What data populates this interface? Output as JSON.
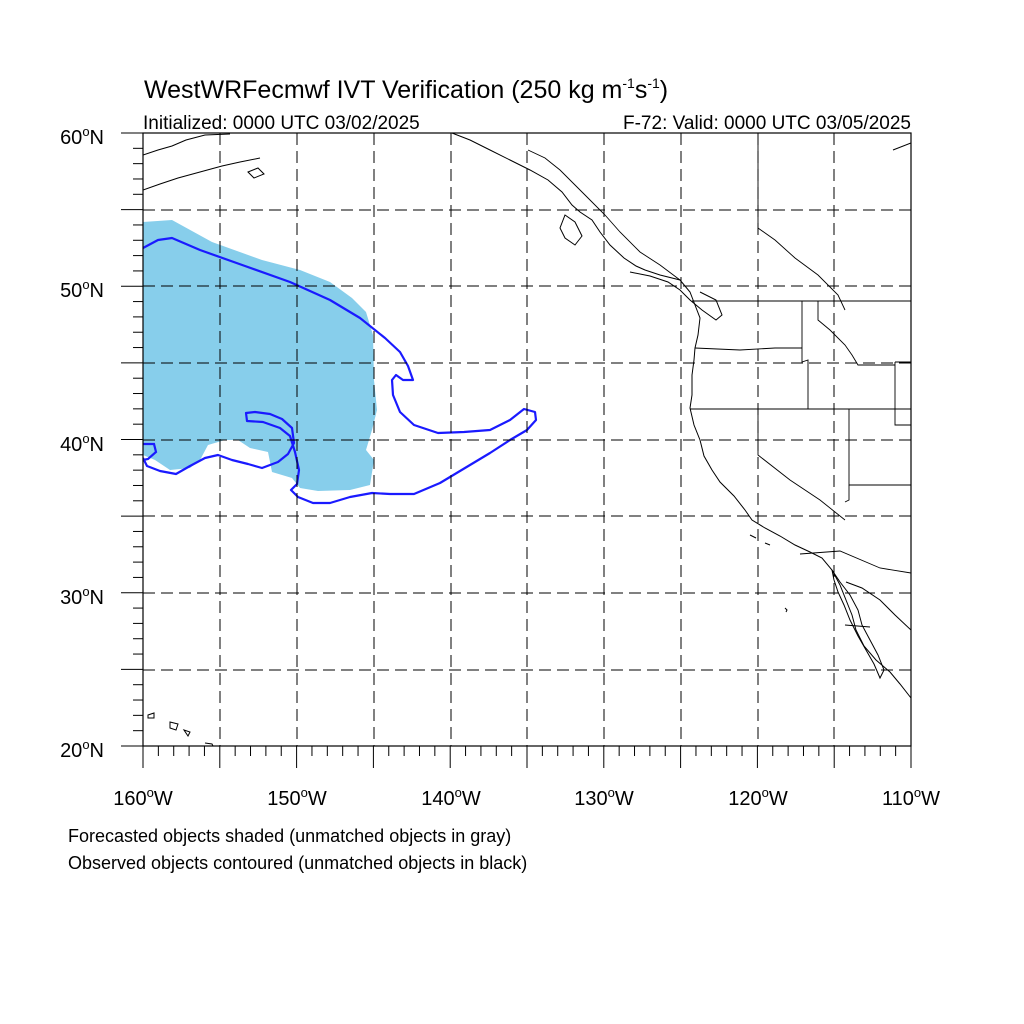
{
  "title": {
    "main": "WestWRFecmwf IVT Verification (250 kg m",
    "sup1": "-1",
    "mid": "s",
    "sup2": "-1",
    "end": ")"
  },
  "subtitle_left": "Initialized: 0000 UTC 03/02/2025",
  "subtitle_right": "F-72: Valid: 0000 UTC 03/05/2025",
  "lat_labels": [
    {
      "deg": "60",
      "unit": "o",
      "hem": "N"
    },
    {
      "deg": "50",
      "unit": "o",
      "hem": "N"
    },
    {
      "deg": "40",
      "unit": "o",
      "hem": "N"
    },
    {
      "deg": "30",
      "unit": "o",
      "hem": "N"
    },
    {
      "deg": "20",
      "unit": "o",
      "hem": "N"
    }
  ],
  "lon_labels": [
    {
      "deg": "160",
      "unit": "o",
      "hem": "W"
    },
    {
      "deg": "150",
      "unit": "o",
      "hem": "W"
    },
    {
      "deg": "140",
      "unit": "o",
      "hem": "W"
    },
    {
      "deg": "130",
      "unit": "o",
      "hem": "W"
    },
    {
      "deg": "120",
      "unit": "o",
      "hem": "W"
    },
    {
      "deg": "110",
      "unit": "o",
      "hem": "W"
    }
  ],
  "caption_line1": "Forecasted objects shaded (unmatched objects in gray)",
  "caption_line2": "Observed objects contoured (unmatched objects in black)",
  "map_extent": {
    "lon_min": -160,
    "lon_max": -110,
    "lat_min": 20,
    "lat_max": 60
  },
  "colors": {
    "forecast_matched_fill": "#87ceeb",
    "observed_matched_contour": "#1a1aff",
    "coastline": "#000000",
    "grid": "#000000"
  }
}
